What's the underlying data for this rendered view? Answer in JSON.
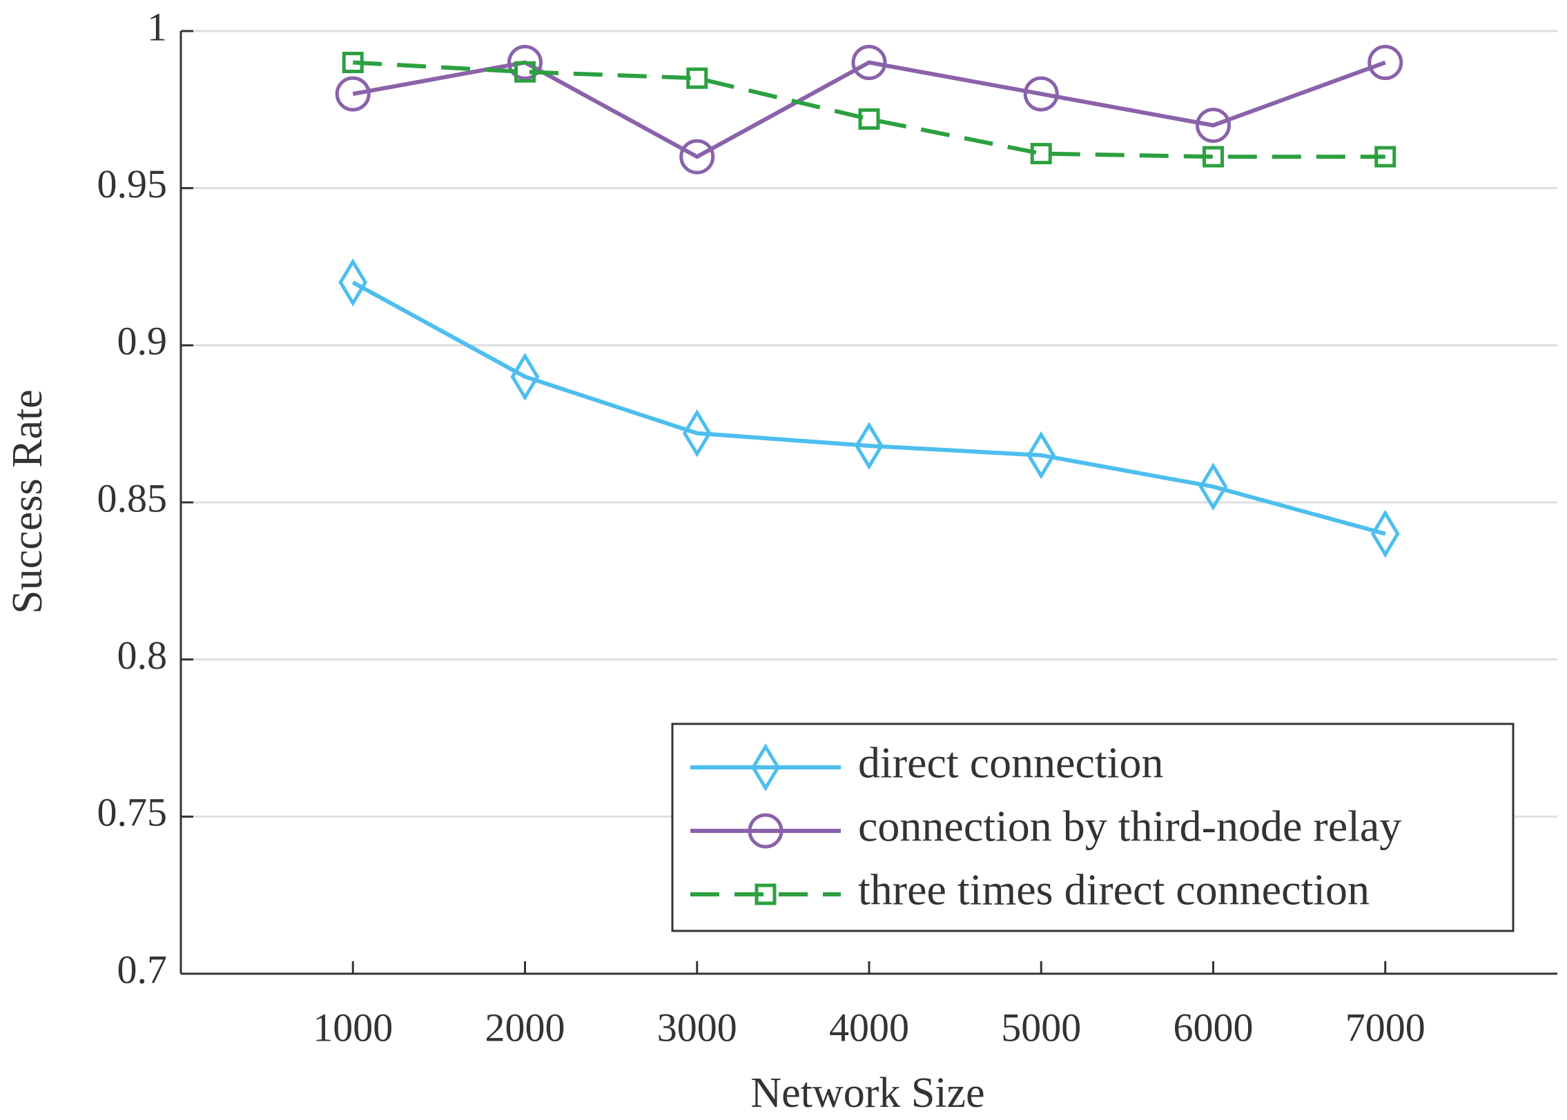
{
  "chart_data": {
    "type": "line",
    "x_label": "Network Size",
    "y_label": "Success Rate",
    "x": [
      1000,
      2000,
      3000,
      4000,
      5000,
      6000,
      7000
    ],
    "xlim": [
      0,
      8000
    ],
    "xticks": [
      1000,
      2000,
      3000,
      4000,
      5000,
      6000,
      7000
    ],
    "ylim": [
      0.7,
      1
    ],
    "yticks": [
      0.7,
      0.75,
      0.8,
      0.85,
      0.9,
      0.95,
      1
    ],
    "grid": true,
    "legend": "lower-right",
    "series": [
      {
        "name": "direct connection",
        "color": "#4dbeee",
        "marker": "diamond",
        "dash": "solid",
        "values": [
          0.92,
          0.89,
          0.872,
          0.868,
          0.865,
          0.855,
          0.84
        ]
      },
      {
        "name": "connection by third-node relay",
        "color": "#8a62aa",
        "marker": "circle",
        "dash": "solid",
        "values": [
          0.98,
          0.99,
          0.96,
          0.99,
          0.98,
          0.97,
          0.99
        ]
      },
      {
        "name": "three times direct connection",
        "color": "#2ca040",
        "marker": "square",
        "dash": "dashed",
        "values": [
          0.99,
          0.987,
          0.985,
          0.972,
          0.961,
          0.96,
          0.96
        ]
      }
    ]
  }
}
